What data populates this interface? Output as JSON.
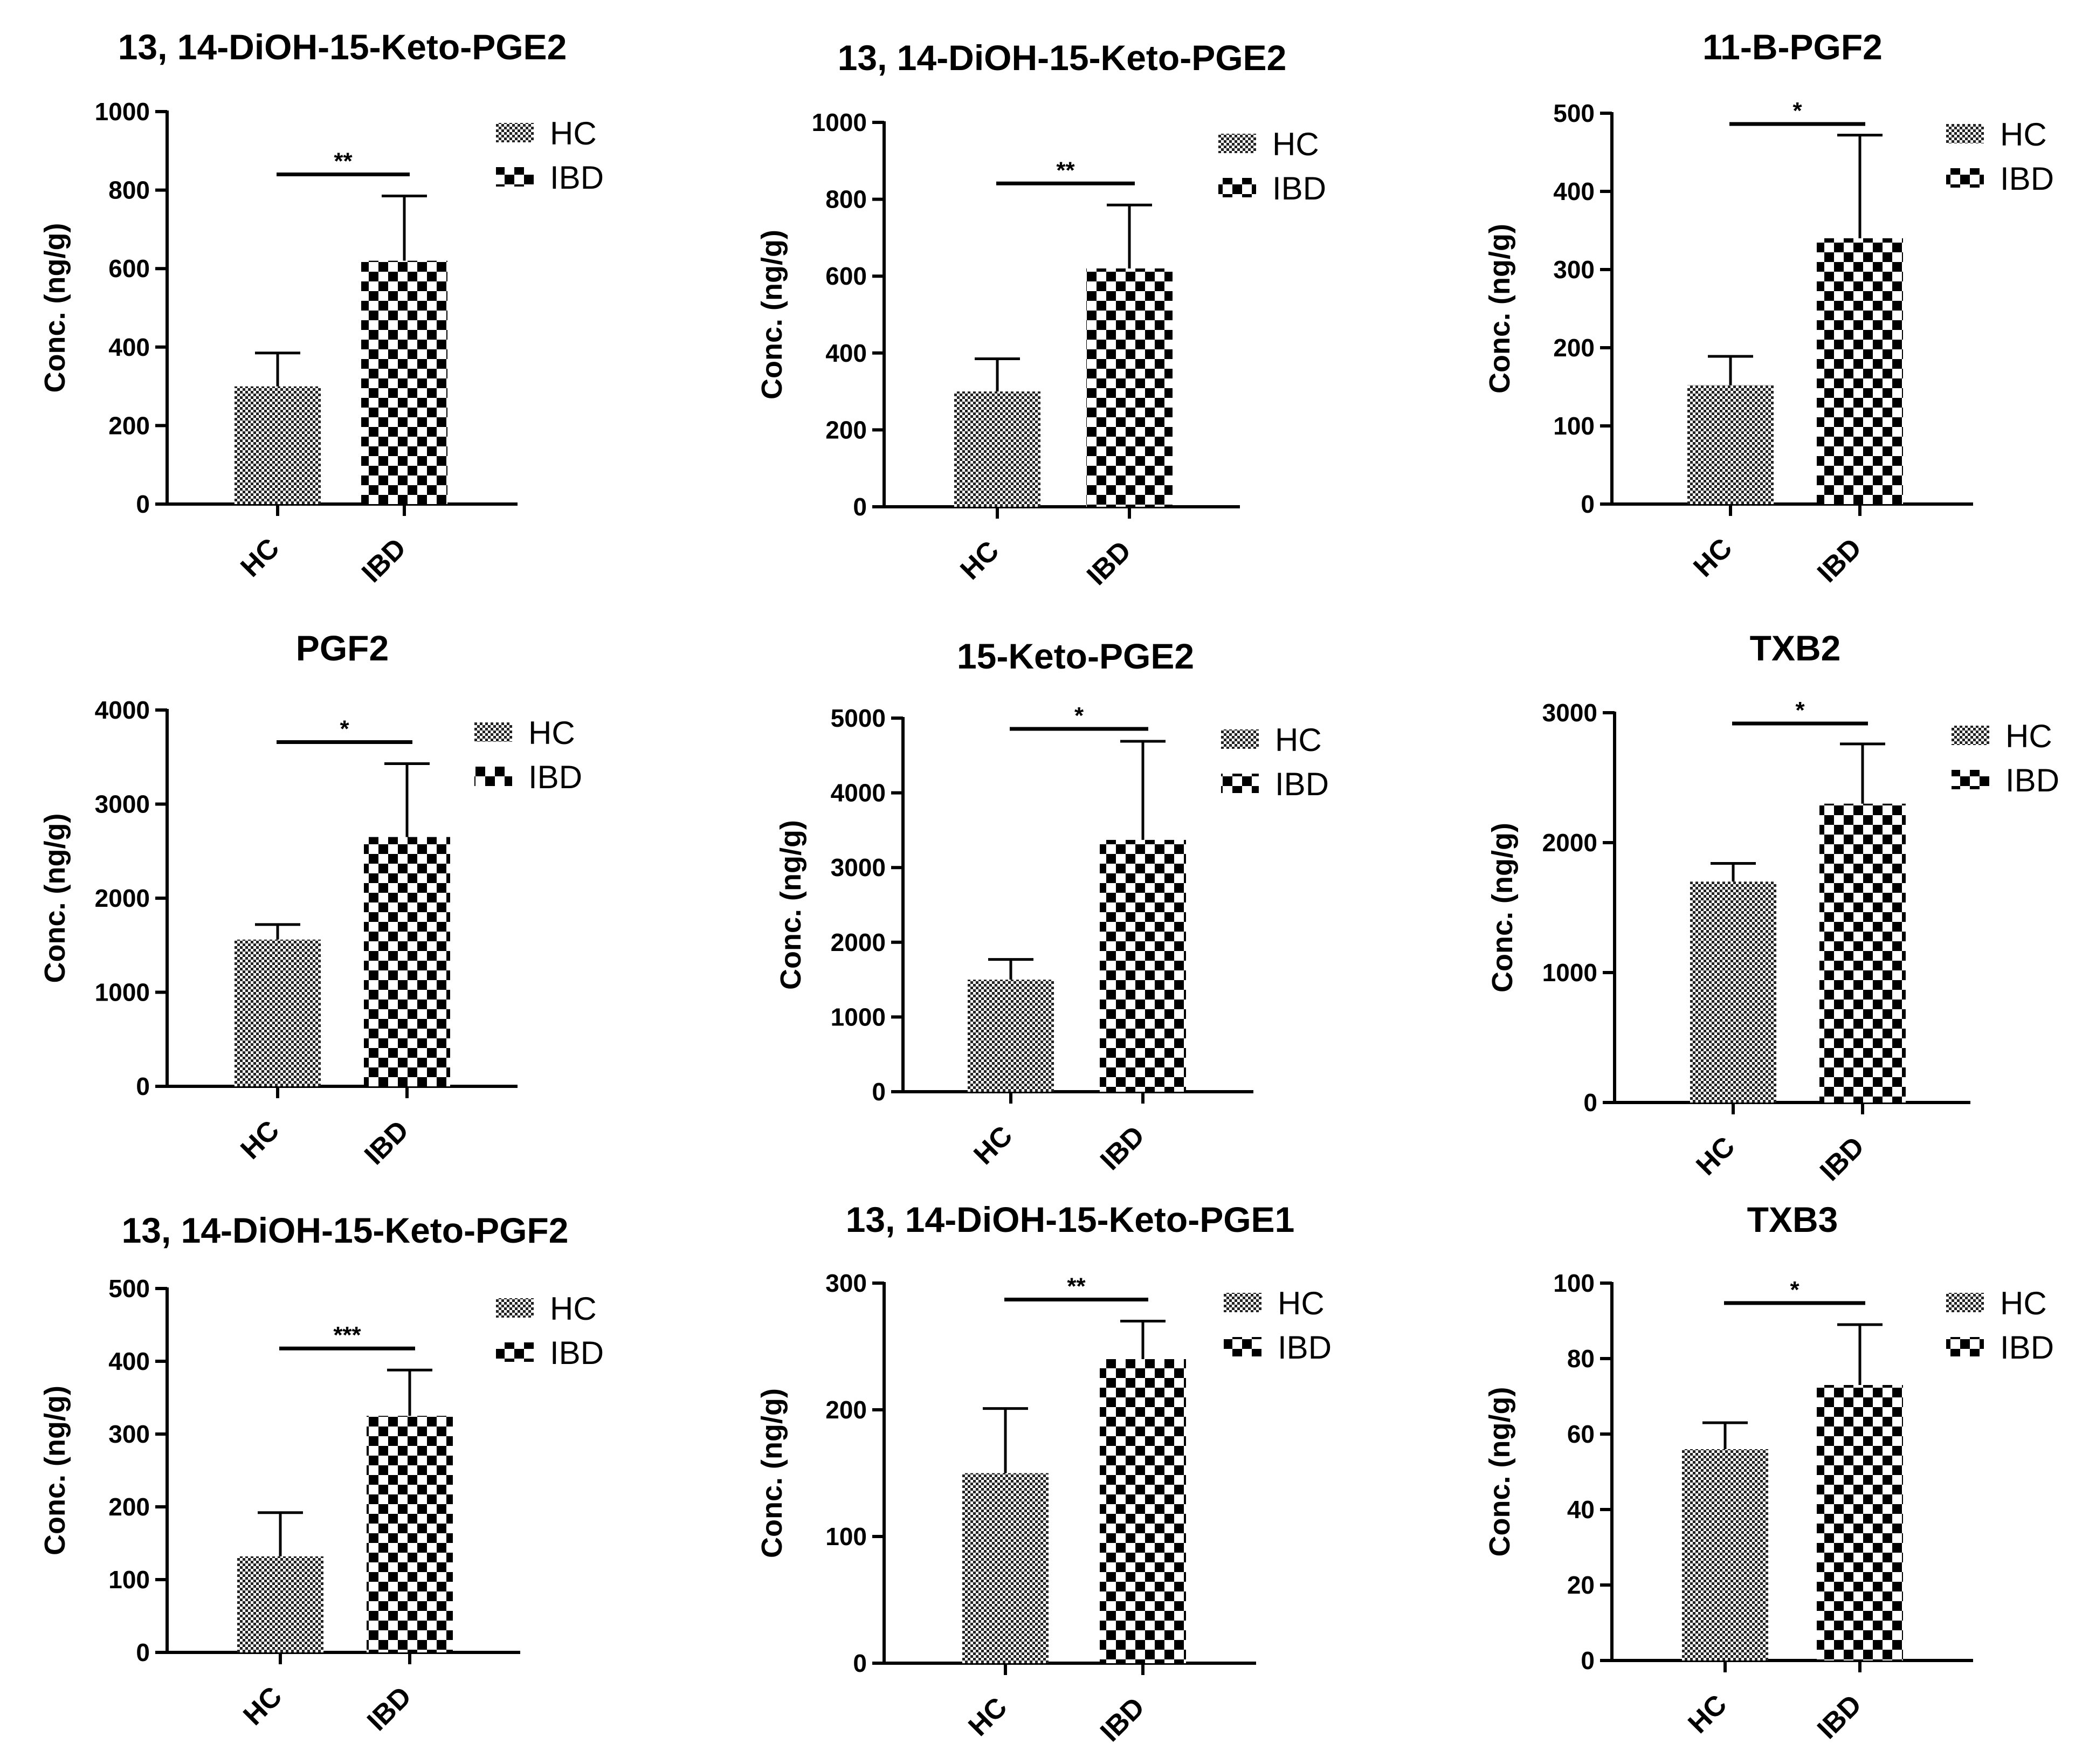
{
  "figure": {
    "legend_labels": [
      "HC",
      "IBD"
    ],
    "charts_count": 9
  },
  "chart_data": [
    {
      "type": "bar",
      "title": "13, 14-DiOH-15-Keto-PGE2",
      "ylabel": "Conc. (ng/g)",
      "xlabel": "",
      "categories": [
        "HC",
        "IBD"
      ],
      "values": [
        300,
        620
      ],
      "errors": [
        85,
        165
      ],
      "ylim": [
        0,
        1000
      ],
      "yticks": [
        0,
        200,
        400,
        600,
        800,
        1000
      ],
      "significance": "**",
      "legend": [
        "HC",
        "IBD"
      ],
      "legend_position": "top-right"
    },
    {
      "type": "bar",
      "title": "13, 14-DiOH-15-Keto-PGE2",
      "ylabel": "Conc. (ng/g)",
      "xlabel": "",
      "categories": [
        "HC",
        "IBD"
      ],
      "values": [
        300,
        620
      ],
      "errors": [
        85,
        165
      ],
      "ylim": [
        0,
        1000
      ],
      "yticks": [
        0,
        200,
        400,
        600,
        800,
        1000
      ],
      "significance": "**",
      "legend": [
        "HC",
        "IBD"
      ],
      "legend_position": "top-right"
    },
    {
      "type": "bar",
      "title": "11-B-PGF2",
      "ylabel": "Conc. (ng/g)",
      "xlabel": "",
      "categories": [
        "HC",
        "IBD"
      ],
      "values": [
        152,
        340
      ],
      "errors": [
        37,
        132
      ],
      "ylim": [
        0,
        500
      ],
      "yticks": [
        0,
        100,
        200,
        300,
        400,
        500
      ],
      "significance": "*",
      "legend": [
        "HC",
        "IBD"
      ],
      "legend_position": "top-right"
    },
    {
      "type": "bar",
      "title": "PGF2",
      "ylabel": "Conc. (ng/g)",
      "xlabel": "",
      "categories": [
        "HC",
        "IBD"
      ],
      "values": [
        1560,
        2650
      ],
      "errors": [
        160,
        780
      ],
      "ylim": [
        0,
        4000
      ],
      "yticks": [
        0,
        1000,
        2000,
        3000,
        4000
      ],
      "significance": "*",
      "legend": [
        "HC",
        "IBD"
      ],
      "legend_position": "top-right"
    },
    {
      "type": "bar",
      "title": "15-Keto-PGE2",
      "ylabel": "Conc. (ng/g)",
      "xlabel": "",
      "categories": [
        "HC",
        "IBD"
      ],
      "values": [
        1500,
        3370
      ],
      "errors": [
        270,
        1320
      ],
      "ylim": [
        0,
        5000
      ],
      "yticks": [
        0,
        1000,
        2000,
        3000,
        4000,
        5000
      ],
      "significance": "*",
      "legend": [
        "HC",
        "IBD"
      ],
      "legend_position": "top-right"
    },
    {
      "type": "bar",
      "title": "TXB2",
      "ylabel": "Conc. (ng/g)",
      "xlabel": "",
      "categories": [
        "HC",
        "IBD"
      ],
      "values": [
        1700,
        2300
      ],
      "errors": [
        140,
        460
      ],
      "ylim": [
        0,
        3000
      ],
      "yticks": [
        0,
        1000,
        2000,
        3000
      ],
      "significance": "*",
      "legend": [
        "HC",
        "IBD"
      ],
      "legend_position": "top-right"
    },
    {
      "type": "bar",
      "title": "13, 14-DiOH-15-Keto-PGF2",
      "ylabel": "Conc. (ng/g)",
      "xlabel": "",
      "categories": [
        "HC",
        "IBD"
      ],
      "values": [
        132,
        325
      ],
      "errors": [
        60,
        63
      ],
      "ylim": [
        0,
        500
      ],
      "yticks": [
        0,
        100,
        200,
        300,
        400,
        500
      ],
      "significance": "***",
      "legend": [
        "HC",
        "IBD"
      ],
      "legend_position": "top-right"
    },
    {
      "type": "bar",
      "title": "13, 14-DiOH-15-Keto-PGE1",
      "ylabel": "Conc. (ng/g)",
      "xlabel": "",
      "categories": [
        "HC",
        "IBD"
      ],
      "values": [
        150,
        240
      ],
      "errors": [
        51,
        30
      ],
      "ylim": [
        0,
        300
      ],
      "yticks": [
        0,
        100,
        200,
        300
      ],
      "significance": "**",
      "legend": [
        "HC",
        "IBD"
      ],
      "legend_position": "top-right"
    },
    {
      "type": "bar",
      "title": "TXB3",
      "ylabel": "Conc. (ng/g)",
      "xlabel": "",
      "categories": [
        "HC",
        "IBD"
      ],
      "values": [
        56,
        73
      ],
      "errors": [
        7,
        16
      ],
      "ylim": [
        0,
        100
      ],
      "yticks": [
        0,
        20,
        40,
        60,
        80,
        100
      ],
      "significance": "*",
      "legend": [
        "HC",
        "IBD"
      ],
      "legend_position": "top-right"
    }
  ]
}
